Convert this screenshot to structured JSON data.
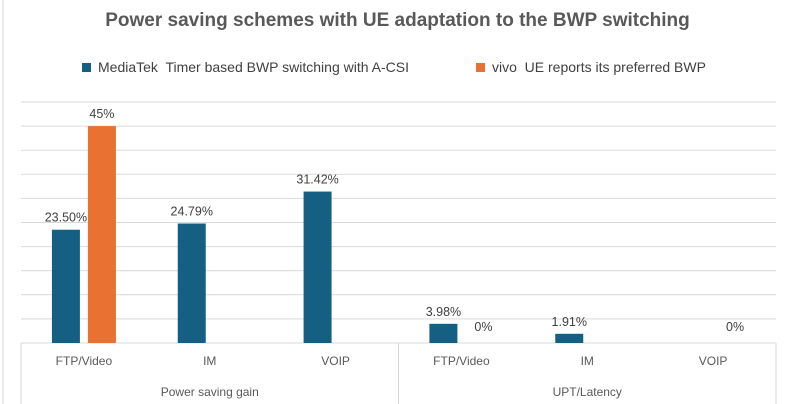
{
  "chart_data": {
    "type": "bar",
    "title": "Power saving schemes with UE adaptation to the BWP switching",
    "groups": [
      {
        "label": "Power saving gain",
        "categories": [
          "FTP/Video",
          "IM",
          "VOIP"
        ]
      },
      {
        "label": "UPT/Latency",
        "categories": [
          "FTP/Video",
          "IM",
          "VOIP"
        ]
      }
    ],
    "categories": [
      "FTP/Video",
      "IM",
      "VOIP",
      "FTP/Video",
      "IM",
      "VOIP"
    ],
    "series": [
      {
        "name": "MediaTek  Timer based BWP switching with A-CSI",
        "color": "#156082",
        "values": [
          23.5,
          24.79,
          31.42,
          3.98,
          1.91,
          null
        ],
        "labels": [
          "23.50%",
          "24.79%",
          "31.42%",
          "3.98%",
          "1.91%",
          ""
        ]
      },
      {
        "name": "vivo  UE reports its preferred BWP",
        "color": "#E97132",
        "values": [
          45,
          null,
          null,
          0,
          null,
          0
        ],
        "labels": [
          "45%",
          "",
          "",
          "0%",
          "",
          "0%"
        ]
      }
    ],
    "ylim": [
      0,
      50
    ],
    "y_step": 5,
    "y_axis_visible": false,
    "grid": true,
    "legend_position": "top"
  }
}
